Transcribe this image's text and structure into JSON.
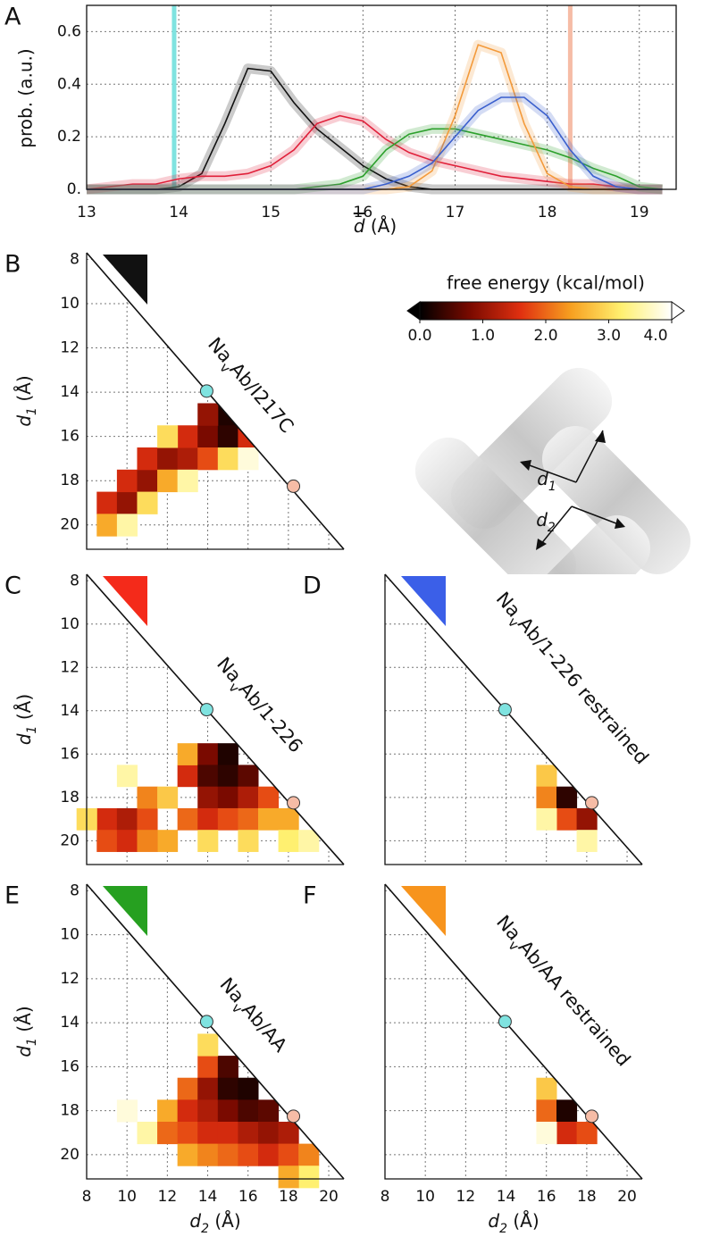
{
  "chart_data": [
    {
      "type": "line",
      "panel": "A",
      "ylabel": "prob. (a.u.)",
      "xlabel": [
        "d",
        " (Å)"
      ],
      "x": [
        13,
        13.25,
        13.5,
        13.75,
        14,
        14.25,
        14.5,
        14.75,
        15,
        15.25,
        15.5,
        15.75,
        16,
        16.25,
        16.5,
        16.75,
        17,
        17.25,
        17.5,
        17.75,
        18,
        18.25,
        18.5,
        18.75,
        19,
        19.25
      ],
      "xlim": [
        13,
        19.4
      ],
      "xticks": [
        13,
        14,
        15,
        16,
        17,
        18,
        19
      ],
      "ylim": [
        0,
        0.7
      ],
      "yticks": [
        {
          "value": 0,
          "label": "0."
        },
        0.2,
        0.4,
        0.6
      ],
      "grid": true,
      "vlines": [
        {
          "value": 13.95,
          "color": "#7fe3e0"
        },
        {
          "value": 18.25,
          "color": "#f6bca6"
        }
      ],
      "series": [
        {
          "color": "#111111",
          "values": [
            0,
            0,
            0,
            0,
            0.01,
            0.06,
            0.25,
            0.46,
            0.45,
            0.33,
            0.23,
            0.16,
            0.09,
            0.04,
            0.01,
            0,
            0,
            0,
            0,
            0,
            0,
            0,
            0,
            0,
            0,
            0
          ]
        },
        {
          "color": "#e0203a",
          "values": [
            0,
            0.01,
            0.02,
            0.02,
            0.04,
            0.05,
            0.05,
            0.06,
            0.09,
            0.15,
            0.25,
            0.28,
            0.26,
            0.19,
            0.14,
            0.11,
            0.09,
            0.07,
            0.05,
            0.04,
            0.03,
            0.02,
            0.02,
            0.01,
            0,
            0
          ]
        },
        {
          "color": "#2ca02c",
          "values": [
            0,
            0,
            0,
            0,
            0,
            0,
            0,
            0,
            0,
            0,
            0.01,
            0.02,
            0.05,
            0.15,
            0.21,
            0.23,
            0.23,
            0.21,
            0.19,
            0.17,
            0.15,
            0.12,
            0.08,
            0.05,
            0.01,
            0
          ]
        },
        {
          "color": "#f39a3b",
          "values": [
            0,
            0,
            0,
            0,
            0,
            0,
            0,
            0,
            0,
            0,
            0,
            0,
            0,
            0,
            0.01,
            0.07,
            0.28,
            0.55,
            0.52,
            0.25,
            0.06,
            0.01,
            0,
            0,
            0,
            0
          ]
        },
        {
          "color": "#3a5fcd",
          "values": [
            0,
            0,
            0,
            0,
            0,
            0,
            0,
            0,
            0,
            0,
            0,
            0,
            0,
            0.02,
            0.05,
            0.1,
            0.2,
            0.3,
            0.35,
            0.35,
            0.28,
            0.15,
            0.05,
            0.01,
            0,
            0
          ]
        }
      ]
    },
    {
      "type": "heatmap",
      "panel": "B",
      "title": [
        "Na",
        "v",
        "Ab/I217C"
      ],
      "color": "#111111",
      "ylabel": [
        "d",
        "1",
        " (Å)"
      ],
      "xlim": [
        8,
        20.75
      ],
      "ylim": [
        7.7,
        21.1
      ],
      "xticks": [
        8,
        10,
        12,
        14,
        16,
        18,
        20
      ],
      "yticks": [
        8,
        10,
        12,
        14,
        16,
        18,
        20
      ],
      "grid": true,
      "points": [
        {
          "value": 13.95,
          "color": "#7fe3e0"
        },
        {
          "value": 18.25,
          "color": "#f6bca6"
        }
      ],
      "colorbar": {
        "label": "free energy (kcal/mol)",
        "lim": [
          0,
          4
        ],
        "colors": [
          "#000000",
          "#7a0a00",
          "#e03010",
          "#f7a020",
          "#fff070",
          "#ffffff"
        ],
        "ticks": [
          {
            "value": 0,
            "label": "0.0"
          },
          {
            "value": 1,
            "label": "1.0"
          },
          {
            "value": 2,
            "label": "2.0"
          },
          {
            "value": 3,
            "label": "3.0"
          },
          {
            "value": 4,
            "label": "4.0"
          }
        ]
      },
      "cells": [
        [
          9,
          19,
          1.5
        ],
        [
          9,
          20,
          2.5
        ],
        [
          10,
          19,
          1.0
        ],
        [
          10,
          18,
          1.5
        ],
        [
          11,
          18,
          1.0
        ],
        [
          11,
          17,
          1.5
        ],
        [
          12,
          17,
          1.0
        ],
        [
          12,
          18,
          2.5
        ],
        [
          13,
          17,
          1.2
        ],
        [
          13,
          16,
          1.5
        ],
        [
          14,
          16,
          0.8
        ],
        [
          14,
          17,
          1.8
        ],
        [
          15,
          15,
          0.2
        ],
        [
          15,
          16,
          0.3
        ],
        [
          16,
          16,
          1.5
        ],
        [
          14,
          15,
          1.0
        ],
        [
          12,
          16,
          3.0
        ],
        [
          15,
          17,
          3.0
        ],
        [
          16,
          17,
          3.8
        ],
        [
          10,
          20,
          3.5
        ],
        [
          11,
          19,
          3.0
        ],
        [
          13,
          18,
          3.5
        ]
      ]
    },
    {
      "type": "heatmap",
      "panel": "C",
      "title": [
        "Na",
        "v",
        "Ab/1-226"
      ],
      "color": "#f42a1a",
      "ylabel": [
        "d",
        "1",
        " (Å)"
      ],
      "xlim": [
        8,
        20.75
      ],
      "ylim": [
        7.7,
        21.1
      ],
      "xticks": [
        8,
        10,
        12,
        14,
        16,
        18,
        20
      ],
      "yticks": [
        8,
        10,
        12,
        14,
        16,
        18,
        20
      ],
      "grid": true,
      "points": [
        {
          "value": 13.95,
          "color": "#7fe3e0"
        },
        {
          "value": 18.25,
          "color": "#f6bca6"
        }
      ],
      "cells": [
        [
          9,
          19,
          1.5
        ],
        [
          9,
          20,
          1.8
        ],
        [
          10,
          19,
          1.2
        ],
        [
          10,
          20,
          1.5
        ],
        [
          11,
          19,
          1.8
        ],
        [
          11,
          18,
          2.2
        ],
        [
          12,
          20,
          2.5
        ],
        [
          12,
          18,
          2.8
        ],
        [
          13,
          19,
          2.0
        ],
        [
          13,
          17,
          1.5
        ],
        [
          13,
          16,
          2.5
        ],
        [
          14,
          16,
          0.8
        ],
        [
          14,
          17,
          0.5
        ],
        [
          14,
          18,
          1.0
        ],
        [
          14,
          19,
          1.5
        ],
        [
          15,
          16,
          0.2
        ],
        [
          15,
          17,
          0.3
        ],
        [
          15,
          18,
          0.8
        ],
        [
          15,
          19,
          1.8
        ],
        [
          16,
          17,
          0.6
        ],
        [
          16,
          18,
          1.2
        ],
        [
          16,
          19,
          2.0
        ],
        [
          17,
          18,
          1.8
        ],
        [
          17,
          19,
          2.5
        ],
        [
          18,
          19,
          2.5
        ],
        [
          18,
          20,
          3.2
        ],
        [
          19,
          20,
          3.5
        ],
        [
          16,
          20,
          3.0
        ],
        [
          14,
          20,
          3.0
        ],
        [
          10,
          17,
          3.5
        ],
        [
          8,
          19,
          3.0
        ],
        [
          11,
          20,
          2.2
        ]
      ]
    },
    {
      "type": "heatmap",
      "panel": "D",
      "title": [
        "Na",
        "v",
        "Ab/1-226 restrained"
      ],
      "color": "#3b5fe8",
      "xlim": [
        8,
        20.75
      ],
      "ylim": [
        7.7,
        21.1
      ],
      "xticks": [
        8,
        10,
        12,
        14,
        16,
        18,
        20
      ],
      "yticks": [
        8,
        10,
        12,
        14,
        16,
        18,
        20
      ],
      "grid": true,
      "points": [
        {
          "value": 13.95,
          "color": "#7fe3e0"
        },
        {
          "value": 18.25,
          "color": "#f6bca6"
        }
      ],
      "cells": [
        [
          16,
          17,
          2.8
        ],
        [
          16,
          18,
          2.2
        ],
        [
          17,
          18,
          0.3
        ],
        [
          17,
          19,
          1.8
        ],
        [
          18,
          19,
          1.0
        ],
        [
          16,
          19,
          3.5
        ],
        [
          18,
          20,
          3.5
        ]
      ]
    },
    {
      "type": "heatmap",
      "panel": "E",
      "title": [
        "Na",
        "v",
        "Ab/AA"
      ],
      "color": "#26a020",
      "ylabel": [
        "d",
        "1",
        " (Å)"
      ],
      "xlabel": [
        "d",
        "2",
        " (Å)"
      ],
      "xlim": [
        8,
        20.75
      ],
      "ylim": [
        7.7,
        21.1
      ],
      "xticks": [
        8,
        10,
        12,
        14,
        16,
        18,
        20
      ],
      "yticks": [
        8,
        10,
        12,
        14,
        16,
        18,
        20
      ],
      "grid": true,
      "points": [
        {
          "value": 13.95,
          "color": "#7fe3e0"
        },
        {
          "value": 18.25,
          "color": "#f6bca6"
        }
      ],
      "cells": [
        [
          11,
          19,
          3.5
        ],
        [
          12,
          18,
          2.5
        ],
        [
          12,
          19,
          2.0
        ],
        [
          13,
          17,
          2.0
        ],
        [
          13,
          18,
          1.5
        ],
        [
          13,
          19,
          1.8
        ],
        [
          13,
          20,
          2.5
        ],
        [
          14,
          16,
          1.8
        ],
        [
          14,
          17,
          1.0
        ],
        [
          14,
          18,
          1.2
        ],
        [
          14,
          19,
          1.5
        ],
        [
          14,
          20,
          2.2
        ],
        [
          15,
          16,
          0.5
        ],
        [
          15,
          17,
          0.3
        ],
        [
          15,
          18,
          0.8
        ],
        [
          15,
          19,
          1.5
        ],
        [
          15,
          20,
          2.0
        ],
        [
          16,
          17,
          0.2
        ],
        [
          16,
          18,
          0.5
        ],
        [
          16,
          19,
          1.2
        ],
        [
          16,
          20,
          1.8
        ],
        [
          17,
          18,
          0.6
        ],
        [
          17,
          19,
          1.0
        ],
        [
          17,
          20,
          1.5
        ],
        [
          18,
          19,
          1.2
        ],
        [
          18,
          20,
          1.8
        ],
        [
          19,
          20,
          2.2
        ],
        [
          10,
          18,
          3.8
        ],
        [
          14,
          15,
          3.0
        ],
        [
          19,
          21,
          3.2
        ],
        [
          18,
          21,
          2.5
        ]
      ]
    },
    {
      "type": "heatmap",
      "panel": "F",
      "title": [
        "Na",
        "v",
        "Ab/AA restrained"
      ],
      "color": "#f7941d",
      "xlabel": [
        "d",
        "2",
        " (Å)"
      ],
      "xlim": [
        8,
        20.75
      ],
      "ylim": [
        7.7,
        21.1
      ],
      "xticks": [
        8,
        10,
        12,
        14,
        16,
        18,
        20
      ],
      "yticks": [
        8,
        10,
        12,
        14,
        16,
        18,
        20
      ],
      "grid": true,
      "points": [
        {
          "value": 13.95,
          "color": "#7fe3e0"
        },
        {
          "value": 18.25,
          "color": "#f6bca6"
        }
      ],
      "cells": [
        [
          16,
          17,
          2.8
        ],
        [
          16,
          18,
          2.0
        ],
        [
          17,
          18,
          0.2
        ],
        [
          17,
          19,
          1.5
        ],
        [
          18,
          19,
          1.8
        ],
        [
          16,
          19,
          3.8
        ]
      ]
    }
  ],
  "inset": {
    "labels": [
      [
        "d",
        "1"
      ],
      [
        "d",
        "2"
      ]
    ]
  }
}
